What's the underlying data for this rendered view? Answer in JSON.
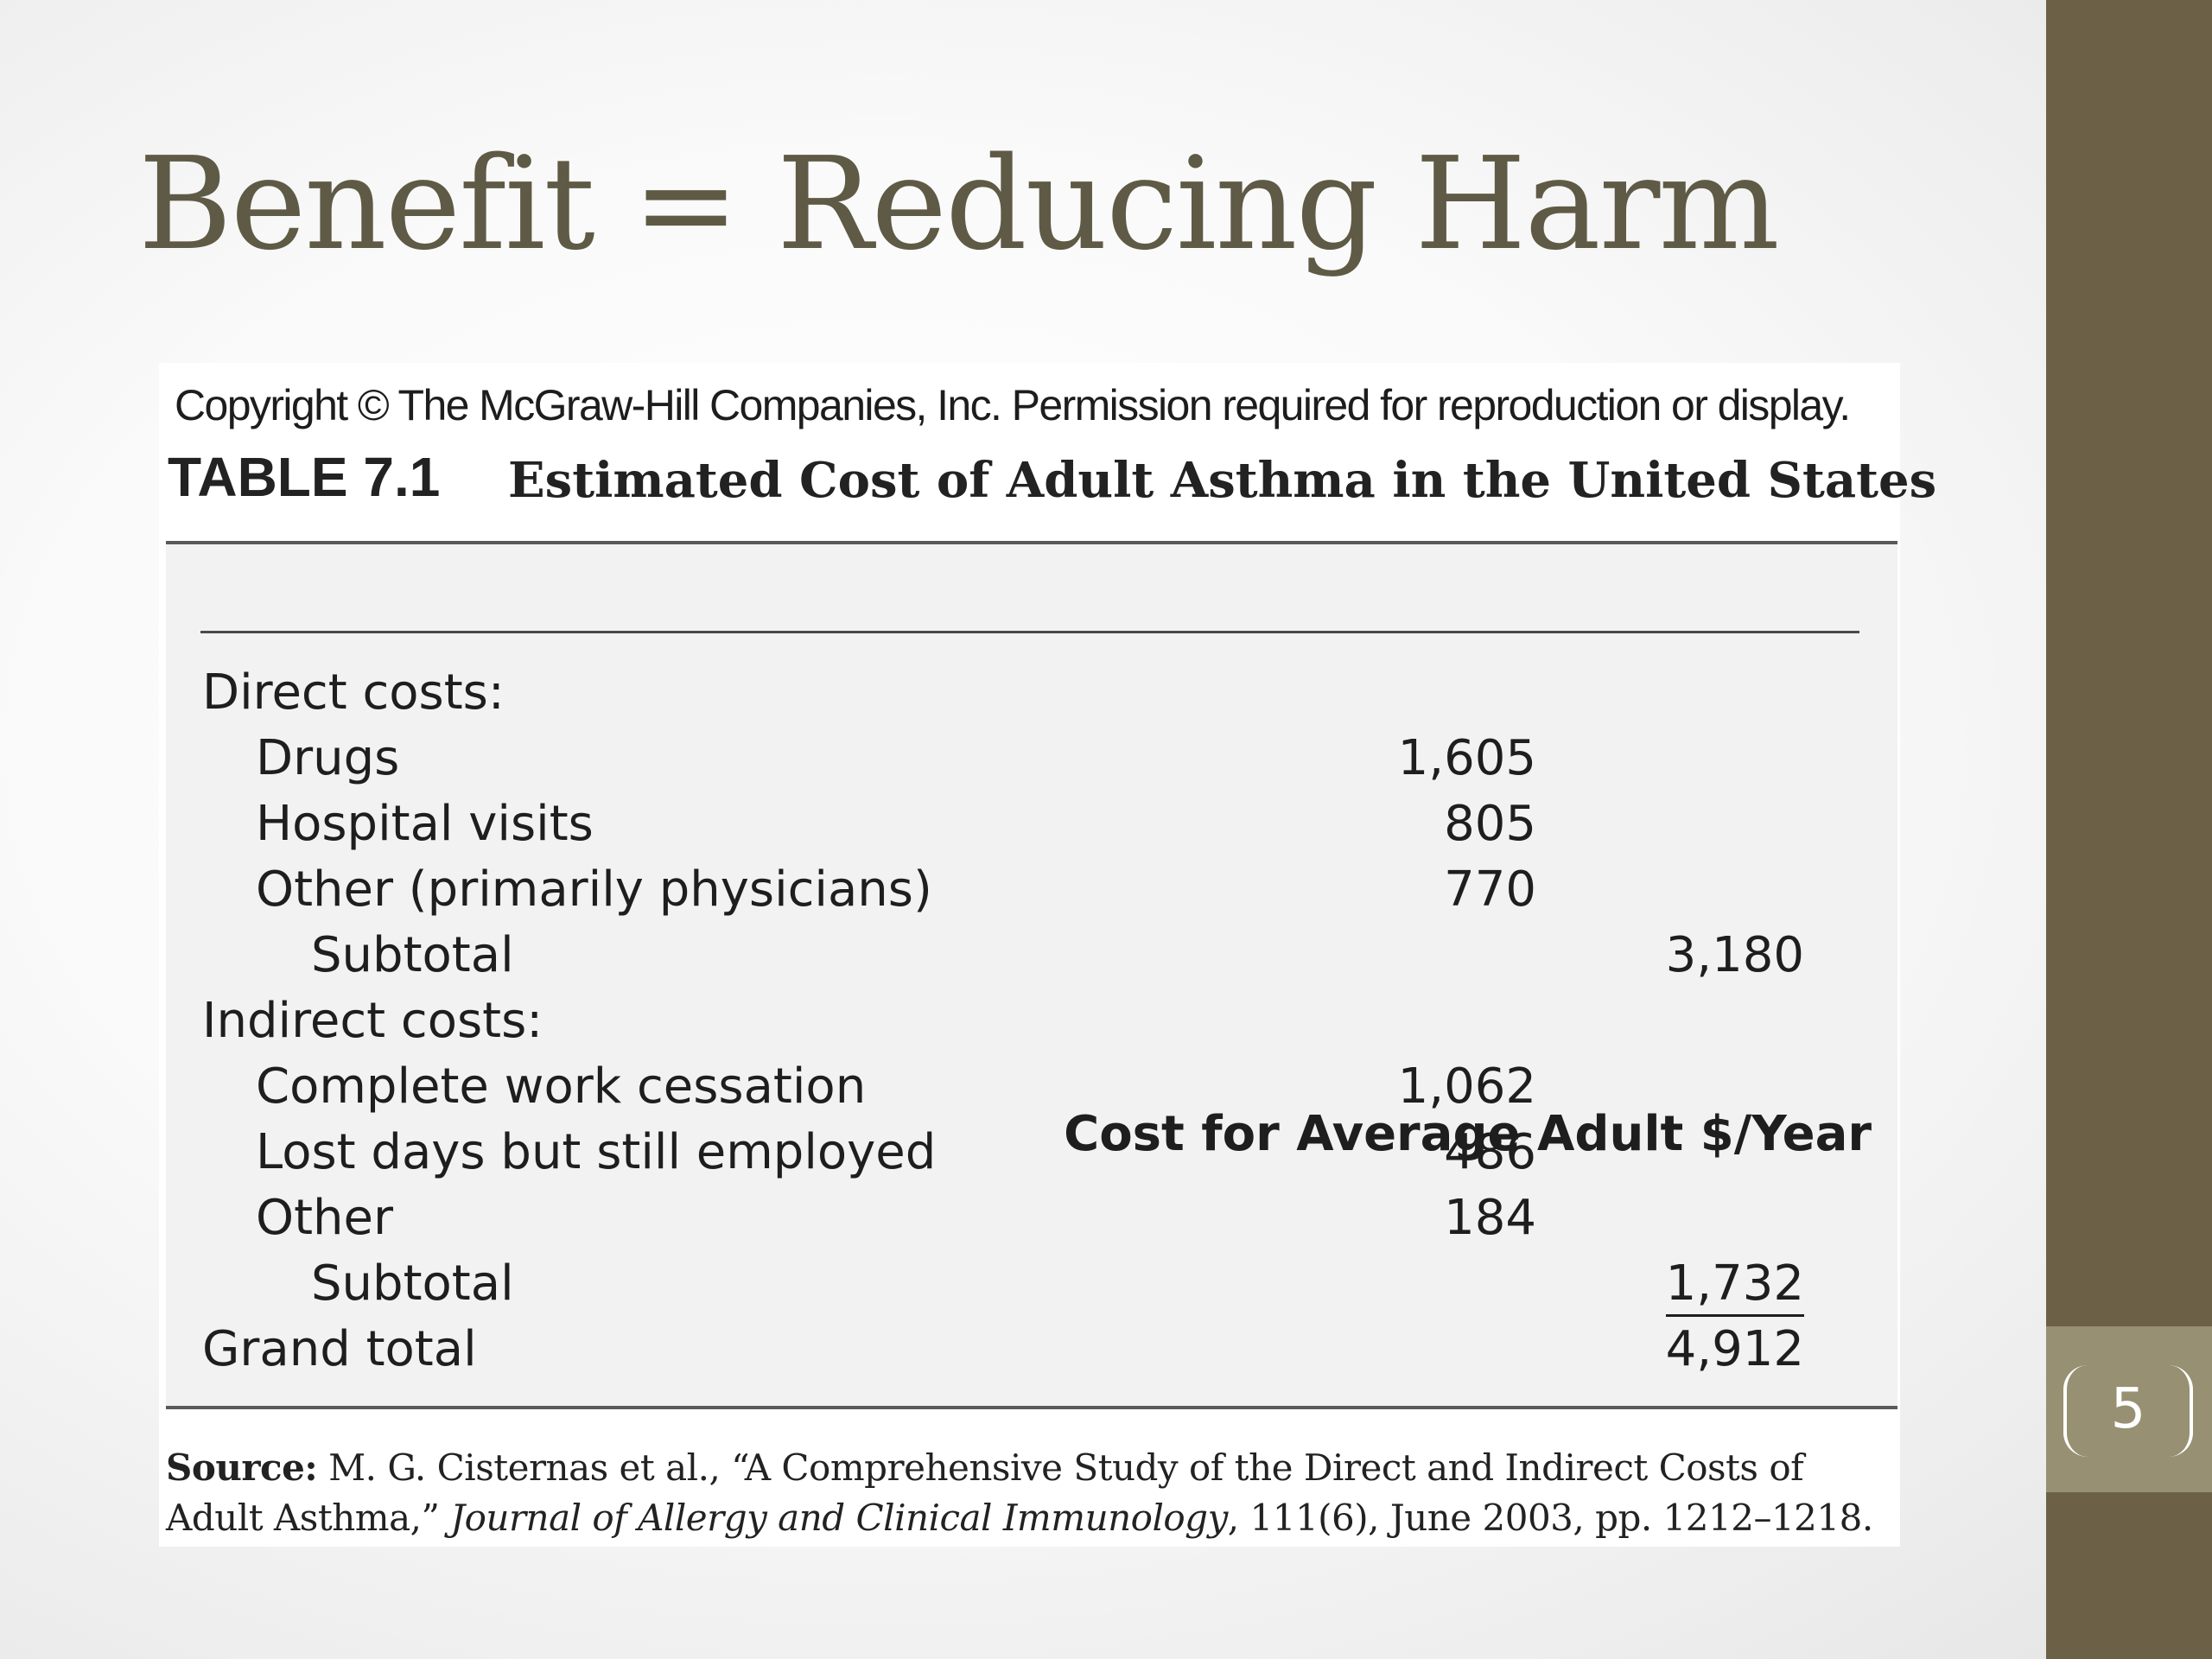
{
  "slide": {
    "title": "Benefit = Reducing Harm",
    "page_number": "5"
  },
  "figure": {
    "copyright": "Copyright © The McGraw-Hill Companies, Inc. Permission required for reproduction or display.",
    "table_label": "TABLE 7.1",
    "table_caption": "Estimated Cost of Adult Asthma in the United States",
    "column_header": "Cost for Average Adult $/Year",
    "rows": [
      {
        "label": "Direct costs:",
        "amount": "",
        "subtotal": ""
      },
      {
        "label": "Drugs",
        "amount": "1,605",
        "subtotal": ""
      },
      {
        "label": "Hospital visits",
        "amount": "805",
        "subtotal": ""
      },
      {
        "label": "Other (primarily physicians)",
        "amount": "770",
        "subtotal": ""
      },
      {
        "label": "Subtotal",
        "amount": "",
        "subtotal": "3,180"
      },
      {
        "label": "Indirect costs:",
        "amount": "",
        "subtotal": ""
      },
      {
        "label": "Complete work cessation",
        "amount": "1,062",
        "subtotal": ""
      },
      {
        "label": "Lost days but still employed",
        "amount": "486",
        "subtotal": ""
      },
      {
        "label": "Other",
        "amount": "184",
        "subtotal": ""
      },
      {
        "label": "Subtotal",
        "amount": "",
        "subtotal": "1,732"
      },
      {
        "label": "Grand total",
        "amount": "",
        "subtotal": "4,912"
      }
    ],
    "source": {
      "label": "Source:",
      "text_before": " M. G. Cisternas et al., “A Comprehensive Study of the Direct and Indirect Costs of Adult Asthma,” ",
      "journal": "Journal of Allergy and Clinical Immunology",
      "text_after": ", 111(6), June 2003, pp. 1212–1218."
    }
  },
  "colors": {
    "title": "#5f5a45",
    "side_bar": "#6c6146",
    "page_tab": "#979072",
    "table_background": "#f2f2f3"
  }
}
